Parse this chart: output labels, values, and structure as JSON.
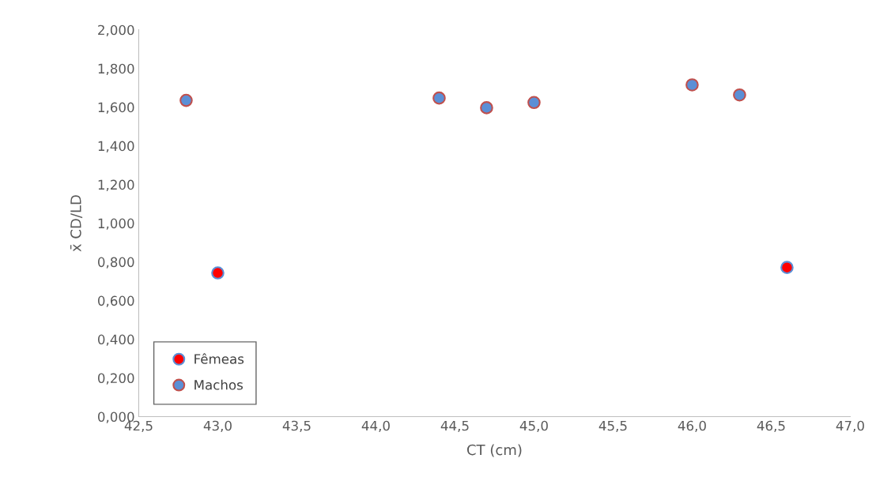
{
  "chart_data": {
    "type": "scatter",
    "xlabel": "CT (cm)",
    "ylabel": "x̄ CD/LD",
    "series": [
      {
        "name": "Fêmeas",
        "color": "#ff0000",
        "x": [
          43.0,
          46.6
        ],
        "values": [
          0.743,
          0.771
        ]
      },
      {
        "name": "Machos",
        "color": "#5b8fd6",
        "x": [
          42.8,
          44.4,
          44.7,
          45.0,
          46.0,
          46.3
        ],
        "values": [
          1.635,
          1.647,
          1.597,
          1.624,
          1.715,
          1.663
        ]
      }
    ],
    "xlim": [
      42.5,
      47.0
    ],
    "xticks": [
      {
        "value": 42.5,
        "label": "42,5"
      },
      {
        "value": 43.0,
        "label": "43,0"
      },
      {
        "value": 43.5,
        "label": "43,5"
      },
      {
        "value": 44.0,
        "label": "44,0"
      },
      {
        "value": 44.5,
        "label": "44,5"
      },
      {
        "value": 45.0,
        "label": "45,0"
      },
      {
        "value": 45.5,
        "label": "45,5"
      },
      {
        "value": 46.0,
        "label": "46,0"
      },
      {
        "value": 46.5,
        "label": "46,5"
      },
      {
        "value": 47.0,
        "label": "47,0"
      }
    ],
    "ylim": [
      0,
      2.0
    ],
    "yticks": [
      {
        "value": 0,
        "label": "0,000"
      },
      {
        "value": 0.2,
        "label": "0,200"
      },
      {
        "value": 0.4,
        "label": "0,400"
      },
      {
        "value": 0.6,
        "label": "0,600"
      },
      {
        "value": 0.8,
        "label": "0,800"
      },
      {
        "value": 1.0,
        "label": "1,000"
      },
      {
        "value": 1.2,
        "label": "1,200"
      },
      {
        "value": 1.4,
        "label": "1,400"
      },
      {
        "value": 1.6,
        "label": "1,600"
      },
      {
        "value": 1.8,
        "label": "1,800"
      },
      {
        "value": 2.0,
        "label": "2,000"
      }
    ],
    "grid": false,
    "legend": "bottom left",
    "marker": "circle"
  }
}
